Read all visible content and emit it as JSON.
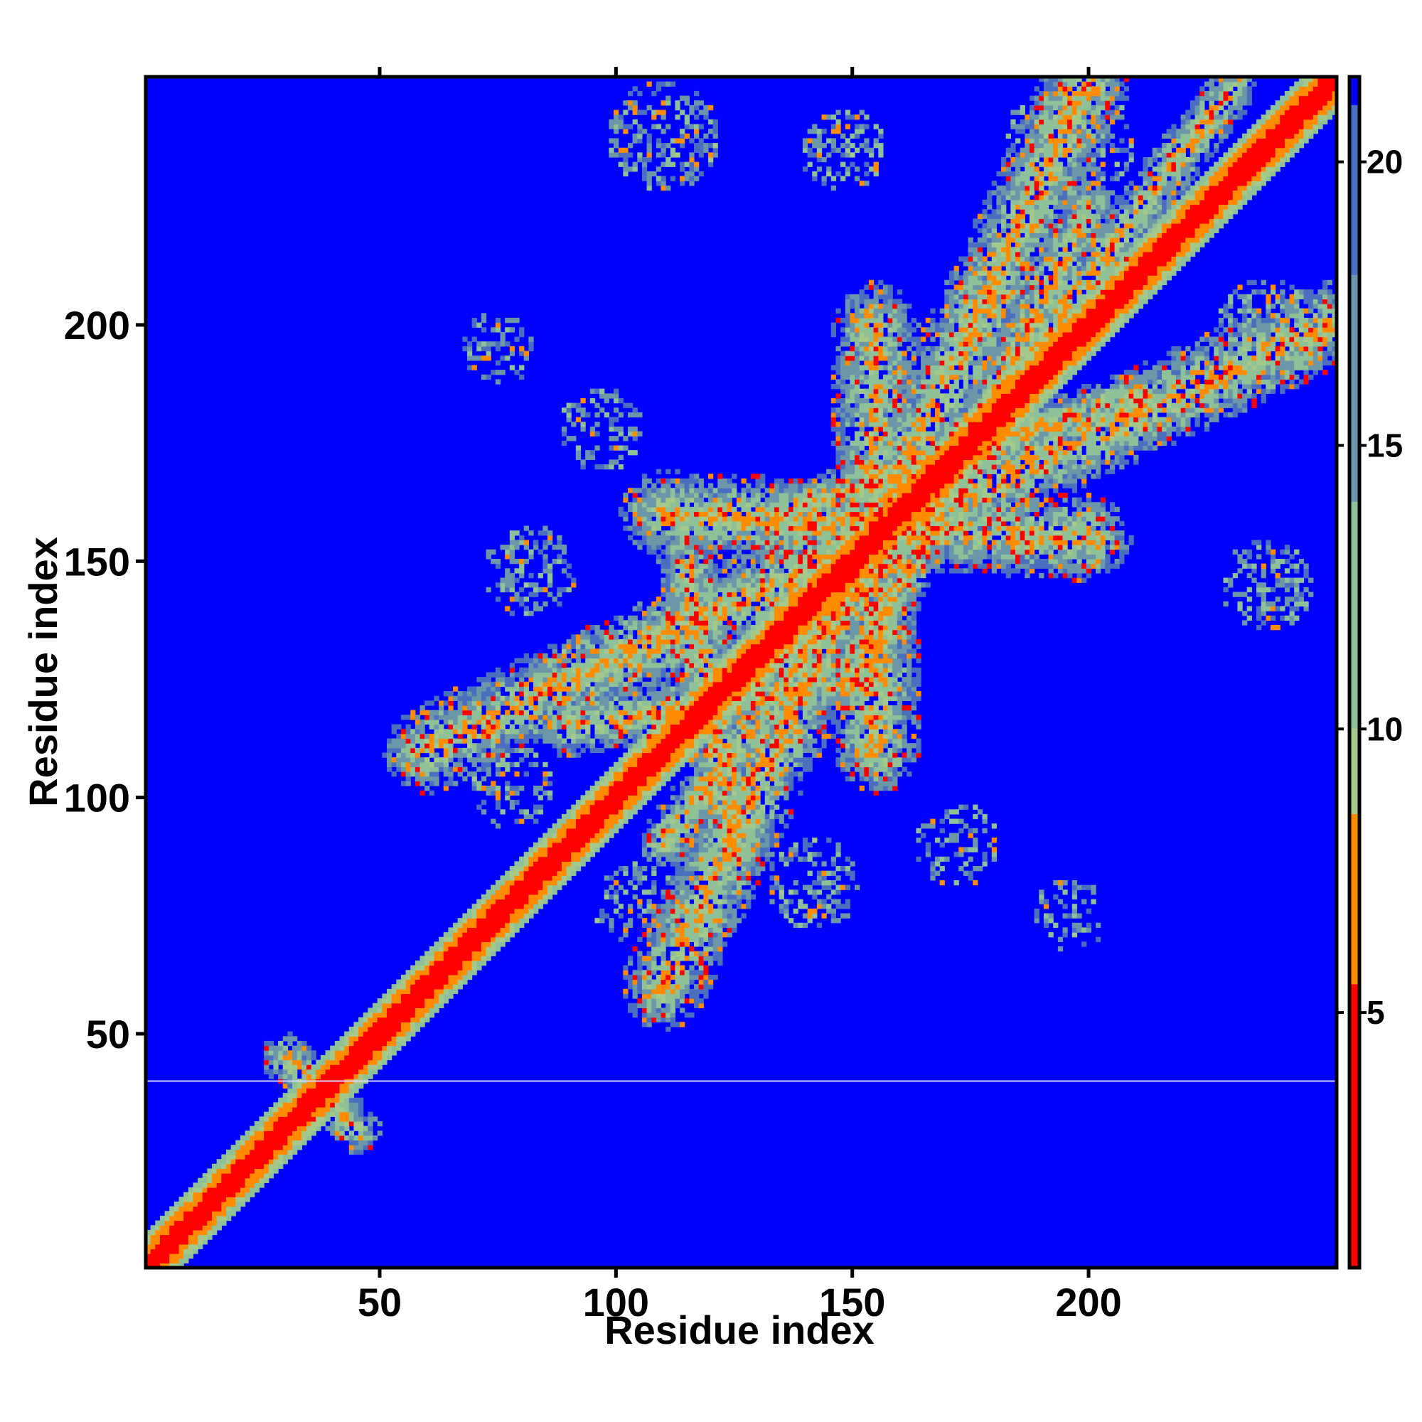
{
  "chart_data": {
    "type": "heatmap",
    "title": "",
    "xlabel": "Residue index",
    "ylabel": "Residue index",
    "xlim": [
      1,
      252
    ],
    "ylim": [
      1,
      252
    ],
    "x_ticks": [
      50,
      100,
      150,
      200
    ],
    "y_ticks": [
      50,
      100,
      150,
      200
    ],
    "grid": false,
    "legend": "colorbar right",
    "colorbar": {
      "ticks": [
        5,
        10,
        15,
        20
      ],
      "range": [
        0.5,
        21.5
      ],
      "colors": [
        {
          "max": 5.5,
          "color": "#ff0000"
        },
        {
          "max": 8.5,
          "color": "#ff8c00"
        },
        {
          "max": 10.0,
          "color": "#a5c98b"
        },
        {
          "max": 14.0,
          "color": "#8fc199"
        },
        {
          "max": 18.0,
          "color": "#6c97a9"
        },
        {
          "max": 21.0,
          "color": "#4a6fbe"
        },
        {
          "max": 999,
          "color": "#0000ff"
        }
      ]
    },
    "features": [
      {
        "kind": "diagonal",
        "from": 1,
        "to": 252
      },
      {
        "kind": "antiparallel",
        "a": [
          60,
          110
        ],
        "b": [
          250,
          200
        ],
        "strength": 0.9
      },
      {
        "kind": "antiparallel",
        "a": [
          110,
          160
        ],
        "b": [
          200,
          155
        ],
        "strength": 0.9
      },
      {
        "kind": "antiparallel",
        "a": [
          155,
          200
        ],
        "b": [
          155,
          110
        ],
        "strength": 0.9
      },
      {
        "kind": "antiparallel",
        "a": [
          200,
          252
        ],
        "b": [
          110,
          60
        ],
        "strength": 0.9
      },
      {
        "kind": "antiparallel",
        "a": [
          90,
          115
        ],
        "b": [
          148,
          125
        ],
        "strength": 0.55
      },
      {
        "kind": "antiparallel",
        "a": [
          115,
          150
        ],
        "b": [
          125,
          88
        ],
        "strength": 0.55
      },
      {
        "kind": "antiparallel",
        "a": [
          135,
          160
        ],
        "b": [
          210,
          185
        ],
        "strength": 0.45
      },
      {
        "kind": "antiparallel",
        "a": [
          200,
          225
        ],
        "b": [
          150,
          125
        ],
        "strength": 0.45
      },
      {
        "kind": "antiparallel",
        "a": [
          230,
          250
        ],
        "b": [
          110,
          90
        ],
        "strength": 0.45
      },
      {
        "kind": "antiparallel",
        "a": [
          30,
          45
        ],
        "b": [
          45,
          30
        ],
        "strength": 0.4
      },
      {
        "kind": "patch",
        "cx": 110,
        "cy": 240,
        "r": 12,
        "strength": 0.5
      },
      {
        "kind": "patch",
        "cx": 148,
        "cy": 237,
        "r": 9,
        "strength": 0.35
      },
      {
        "kind": "patch",
        "cx": 196,
        "cy": 238,
        "r": 14,
        "strength": 0.4
      },
      {
        "kind": "patch",
        "cx": 75,
        "cy": 195,
        "r": 8,
        "strength": 0.35
      },
      {
        "kind": "patch",
        "cx": 97,
        "cy": 178,
        "r": 9,
        "strength": 0.35
      },
      {
        "kind": "patch",
        "cx": 180,
        "cy": 205,
        "r": 11,
        "strength": 0.4
      },
      {
        "kind": "patch",
        "cx": 238,
        "cy": 198,
        "r": 12,
        "strength": 0.4
      },
      {
        "kind": "patch",
        "cx": 82,
        "cy": 148,
        "r": 10,
        "strength": 0.4
      },
      {
        "kind": "patch",
        "cx": 95,
        "cy": 128,
        "r": 8,
        "strength": 0.35
      },
      {
        "kind": "patch",
        "cx": 238,
        "cy": 145,
        "r": 10,
        "strength": 0.4
      },
      {
        "kind": "patch",
        "cx": 78,
        "cy": 102,
        "r": 9,
        "strength": 0.4
      },
      {
        "kind": "patch",
        "cx": 142,
        "cy": 82,
        "r": 10,
        "strength": 0.4
      },
      {
        "kind": "patch",
        "cx": 172,
        "cy": 90,
        "r": 9,
        "strength": 0.35
      },
      {
        "kind": "patch",
        "cx": 196,
        "cy": 75,
        "r": 8,
        "strength": 0.35
      },
      {
        "kind": "patch",
        "cx": 104,
        "cy": 78,
        "r": 9,
        "strength": 0.35
      }
    ],
    "reference_line_y": 40
  }
}
